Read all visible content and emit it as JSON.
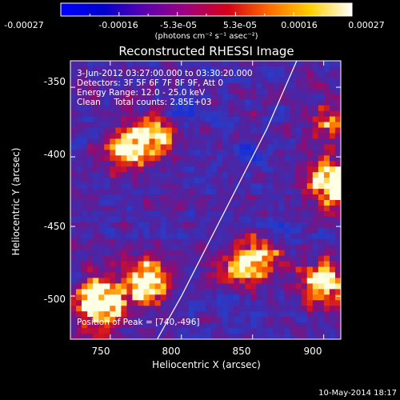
{
  "colorbar": {
    "tick_labels": [
      "-0.00027",
      "-0.00016",
      "-5.3e-05",
      "5.3e-05",
      "0.00016",
      "0.00027"
    ],
    "unit_label": "(photons cm⁻² s⁻¹ asec⁻²)",
    "range": [
      -0.00027,
      0.00027
    ],
    "stops": [
      "#0000ff",
      "#0000cc",
      "#5a00b0",
      "#9e0080",
      "#d40018",
      "#ff6a00",
      "#ffd000",
      "#ffffff"
    ]
  },
  "plot": {
    "title": "Reconstructed RHESSI Image",
    "annotation_lines": [
      "3-Jun-2012 03:27:00.000 to 03:30:20.000",
      "Detectors: 3F 5F 6F 7F 8F 9F, Att 0",
      "Energy Range: 12.0 - 25.0 keV",
      "Clean     Total counts: 2.85E+03"
    ],
    "peak_label": "Position of Peak = [740,-496]",
    "xlabel": "Heliocentric X (arcsec)",
    "ylabel": "Heliocentric Y (arcsec)",
    "x_ticks": [
      "750",
      "800",
      "850",
      "900"
    ],
    "y_ticks": [
      "-350",
      "-400",
      "-450",
      "-500"
    ]
  },
  "footer": {
    "date": "10-May-2014 18:17"
  },
  "chart_data": {
    "type": "heatmap",
    "title": "Reconstructed RHESSI Image",
    "xlabel": "Heliocentric X (arcsec)",
    "ylabel": "Heliocentric Y (arcsec)",
    "xlim": [
      722,
      912
    ],
    "ylim": [
      -531,
      -331
    ],
    "x_ticks": [
      750,
      800,
      850,
      900
    ],
    "y_ticks": [
      -350,
      -400,
      -450,
      -500
    ],
    "peak": [
      740,
      -496
    ],
    "limb_curve": [
      [
        783,
        -531
      ],
      [
        800,
        -500
      ],
      [
        820,
        -460
      ],
      [
        840,
        -420
      ],
      [
        860,
        -380
      ],
      [
        881,
        -331
      ]
    ],
    "hot_regions": [
      {
        "x": 742,
        "y": -505,
        "intensity": 1.0
      },
      {
        "x": 775,
        "y": -490,
        "intensity": 0.8
      },
      {
        "x": 905,
        "y": -420,
        "intensity": 0.9
      },
      {
        "x": 900,
        "y": -490,
        "intensity": 0.7
      },
      {
        "x": 760,
        "y": -395,
        "intensity": 0.6
      },
      {
        "x": 780,
        "y": -385,
        "intensity": 0.55
      },
      {
        "x": 840,
        "y": -480,
        "intensity": 0.5
      },
      {
        "x": 860,
        "y": -470,
        "intensity": 0.5
      },
      {
        "x": 905,
        "y": -375,
        "intensity": 0.45
      }
    ]
  }
}
